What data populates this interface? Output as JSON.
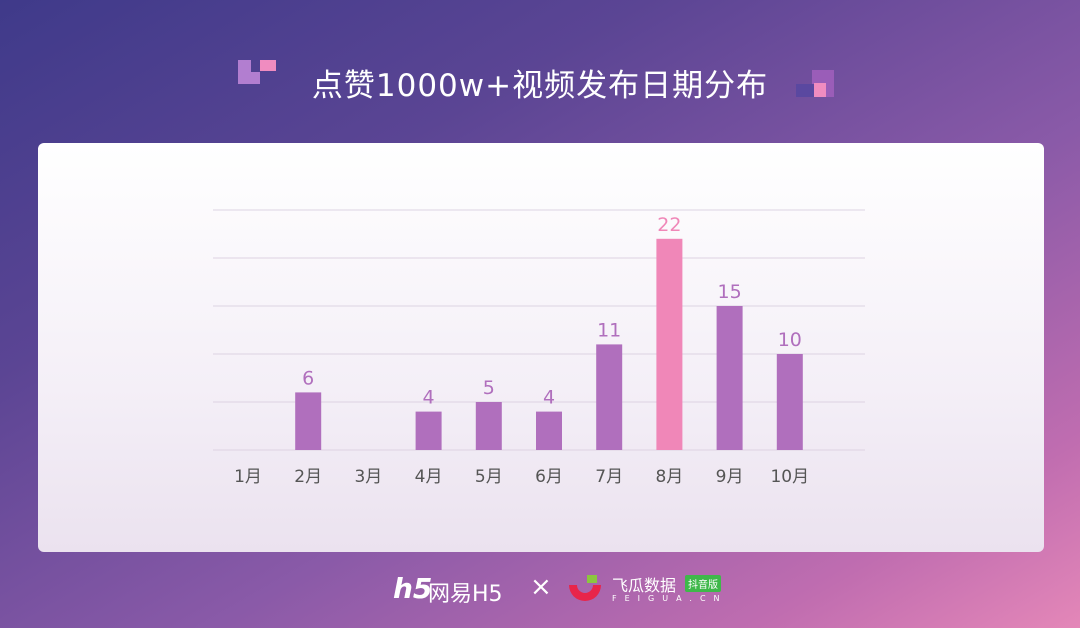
{
  "title": "点赞1000w+视频发布日期分布",
  "chart_data": {
    "type": "bar",
    "title": "点赞1000w+视频发布日期分布",
    "categories": [
      "1月",
      "2月",
      "3月",
      "4月",
      "5月",
      "6月",
      "7月",
      "8月",
      "9月",
      "10月"
    ],
    "values": [
      0,
      6,
      0,
      4,
      5,
      4,
      11,
      22,
      15,
      10
    ],
    "highlight_index": 7,
    "ylim": [
      0,
      25
    ],
    "grid": true,
    "colors": {
      "bar": "#b06fbd",
      "highlight": "#f087b8",
      "label": "#b06fbd",
      "highlight_label": "#f087b8"
    }
  },
  "footer": {
    "brand1": "网易H5",
    "separator": "×",
    "brand2": "飞瓜数据",
    "badge": "抖音版",
    "brand2_sub": "FEIGUA.CN"
  }
}
